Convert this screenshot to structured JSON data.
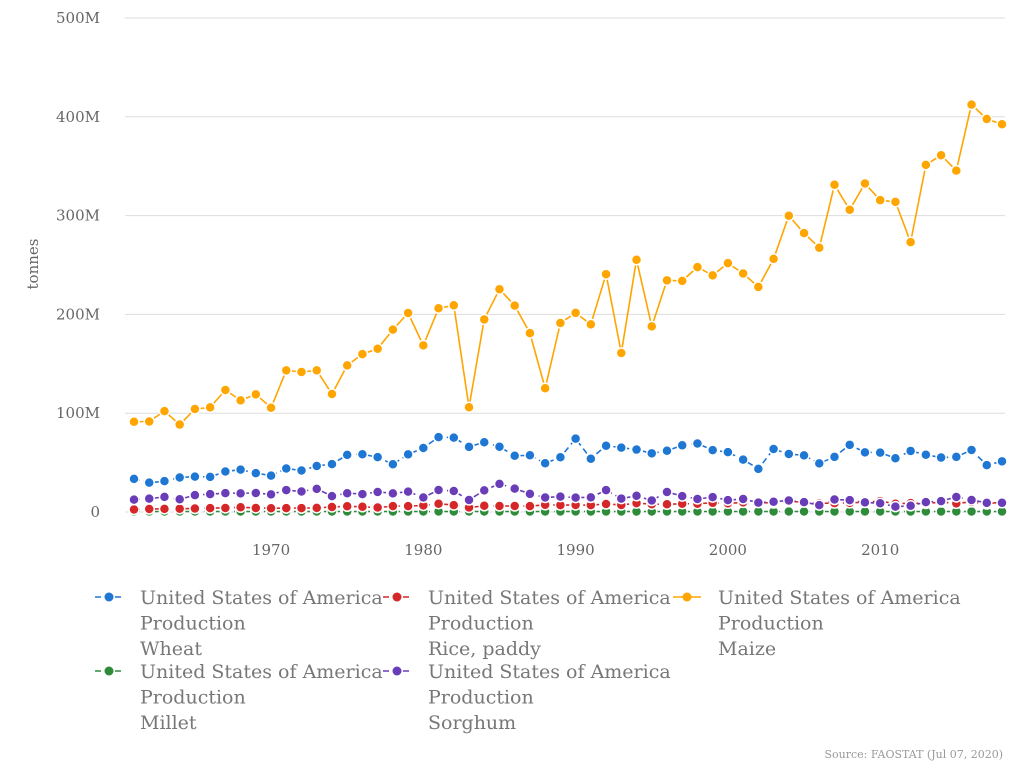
{
  "chart_data": {
    "type": "line",
    "ylabel": "tonnes",
    "ylim": [
      0,
      500000000
    ],
    "yticks": [
      {
        "value": 0,
        "label": "0"
      },
      {
        "value": 100000000,
        "label": "100M"
      },
      {
        "value": 200000000,
        "label": "200M"
      },
      {
        "value": 300000000,
        "label": "300M"
      },
      {
        "value": 400000000,
        "label": "400M"
      },
      {
        "value": 500000000,
        "label": "500M"
      }
    ],
    "xlim": [
      1961,
      2018
    ],
    "xticks": [
      1970,
      1980,
      1990,
      2000,
      2010
    ],
    "grid": "horizontal",
    "legend_position": "bottom",
    "source": "Source: FAOSTAT (Jul 07, 2020)",
    "x": [
      1961,
      1962,
      1963,
      1964,
      1965,
      1966,
      1967,
      1968,
      1969,
      1970,
      1971,
      1972,
      1973,
      1974,
      1975,
      1976,
      1977,
      1978,
      1979,
      1980,
      1981,
      1982,
      1983,
      1984,
      1985,
      1986,
      1987,
      1988,
      1989,
      1990,
      1991,
      1992,
      1993,
      1994,
      1995,
      1996,
      1997,
      1998,
      1999,
      2000,
      2001,
      2002,
      2003,
      2004,
      2005,
      2006,
      2007,
      2008,
      2009,
      2010,
      2011,
      2012,
      2013,
      2014,
      2015,
      2016,
      2017,
      2018
    ],
    "series": [
      {
        "name_lines": [
          "United States of America",
          "Production",
          "Wheat"
        ],
        "color": "#1f77d4",
        "dash": "6,4",
        "values": [
          33.5,
          29.7,
          31.2,
          34.9,
          35.8,
          35.5,
          41.0,
          42.9,
          39.3,
          36.8,
          44.0,
          42.0,
          46.6,
          48.5,
          57.8,
          58.5,
          55.5,
          48.3,
          58.3,
          64.8,
          75.8,
          75.3,
          65.9,
          70.6,
          66.0,
          56.9,
          57.4,
          49.3,
          55.4,
          74.3,
          53.9,
          67.1,
          65.2,
          63.2,
          59.4,
          61.98,
          67.5,
          69.3,
          62.6,
          60.6,
          53.0,
          43.7,
          63.8,
          58.7,
          57.3,
          49.2,
          55.8,
          68.0,
          60.4,
          60.1,
          54.4,
          61.8,
          58.0,
          55.1,
          55.8,
          62.8,
          47.4,
          51.3
        ]
      },
      {
        "name_lines": [
          "United States of America",
          "Production",
          "Rice, paddy"
        ],
        "color": "#d62728",
        "dash": "6,4",
        "values": [
          2.5,
          3.0,
          3.2,
          3.3,
          3.5,
          3.9,
          4.1,
          4.8,
          4.1,
          3.8,
          3.9,
          3.9,
          4.2,
          5.1,
          5.8,
          5.3,
          4.5,
          6.0,
          6.0,
          6.6,
          8.4,
          7.0,
          4.5,
          6.3,
          6.1,
          6.1,
          5.9,
          7.3,
          7.0,
          7.1,
          7.0,
          8.1,
          7.1,
          9.0,
          7.9,
          7.8,
          8.3,
          8.4,
          9.3,
          8.7,
          9.7,
          9.6,
          9.1,
          10.5,
          10.1,
          8.8,
          9.0,
          9.2,
          10.0,
          11.0,
          8.4,
          9.0,
          8.6,
          10.0,
          8.7,
          10.2,
          8.1,
          10.2
        ]
      },
      {
        "name_lines": [
          "United States of America",
          "Production",
          "Maize"
        ],
        "color": "#ffa500",
        "dash": "",
        "values": [
          91.4,
          91.6,
          102.1,
          88.5,
          104.2,
          105.9,
          123.5,
          113.0,
          119.1,
          105.5,
          143.4,
          141.7,
          143.3,
          119.4,
          148.4,
          159.8,
          165.2,
          184.6,
          201.4,
          168.6,
          206.2,
          209.2,
          106.0,
          194.9,
          225.5,
          208.9,
          181.1,
          125.2,
          191.3,
          201.5,
          189.9,
          240.7,
          160.9,
          255.3,
          187.9,
          234.5,
          233.9,
          247.9,
          239.5,
          251.9,
          241.4,
          227.8,
          256.2,
          299.9,
          282.3,
          267.5,
          331.2,
          305.9,
          332.5,
          315.6,
          313.9,
          273.2,
          351.3,
          361.1,
          345.5,
          412.3,
          397.8,
          392.5
        ]
      },
      {
        "name_lines": [
          "United States of America",
          "Production",
          "Millet"
        ],
        "color": "#2e8b3a",
        "dash": "6,4",
        "values": [
          0.5,
          0.5,
          0.5,
          0.5,
          0.5,
          0.5,
          0.5,
          0.5,
          0.5,
          0.5,
          0.5,
          0.5,
          0.5,
          0.5,
          0.5,
          0.5,
          0.5,
          0.5,
          0.5,
          0.5,
          0.5,
          0.5,
          0.5,
          0.5,
          0.5,
          0.5,
          0.5,
          0.5,
          0.5,
          0.5,
          0.5,
          0.5,
          0.5,
          0.5,
          0.5,
          0.5,
          0.5,
          0.5,
          0.5,
          0.5,
          0.5,
          0.5,
          0.5,
          0.5,
          0.5,
          0.5,
          0.5,
          0.5,
          0.5,
          0.5,
          0.5,
          0.5,
          0.5,
          0.5,
          0.5,
          0.5,
          0.5,
          0.5
        ]
      },
      {
        "name_lines": [
          "United States of America",
          "Production",
          "Sorghum"
        ],
        "color": "#6a3db8",
        "dash": "6,4",
        "values": [
          12.5,
          13.5,
          15.3,
          12.9,
          17.1,
          18.1,
          19.1,
          18.9,
          19.2,
          17.8,
          22.2,
          20.7,
          23.4,
          16.1,
          19.0,
          18.1,
          20.3,
          18.8,
          20.6,
          14.7,
          22.3,
          21.2,
          12.2,
          21.9,
          28.5,
          23.7,
          18.4,
          14.7,
          15.6,
          14.6,
          14.8,
          22.2,
          13.6,
          16.4,
          11.6,
          20.2,
          16.1,
          13.2,
          15.1,
          12.0,
          13.1,
          9.5,
          10.4,
          11.6,
          10.0,
          7.0,
          12.6,
          12.0,
          9.7,
          8.8,
          5.4,
          6.3,
          10.0,
          11.0,
          15.2,
          12.2,
          9.2,
          9.3
        ]
      }
    ]
  }
}
